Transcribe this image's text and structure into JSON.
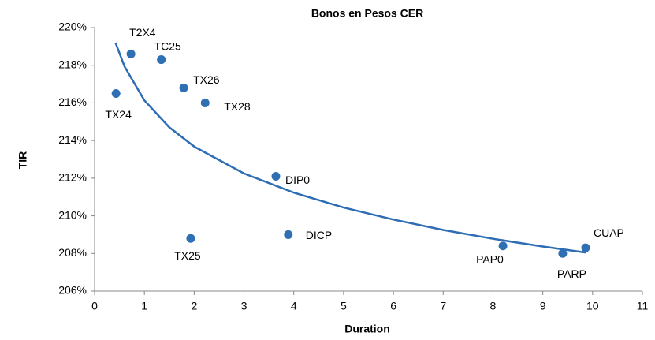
{
  "chart_data": {
    "type": "scatter",
    "title": "Bonos en Pesos CER",
    "x_label": "Duration",
    "y_label": "TIR",
    "xlim": [
      0,
      11
    ],
    "xticks": [
      0,
      1,
      2,
      3,
      4,
      5,
      6,
      7,
      8,
      9,
      10,
      11
    ],
    "ylim": [
      206,
      220
    ],
    "yticks": [
      {
        "value": 206,
        "label": "206%"
      },
      {
        "value": 208,
        "label": "208%"
      },
      {
        "value": 210,
        "label": "210%"
      },
      {
        "value": 212,
        "label": "212%"
      },
      {
        "value": 214,
        "label": "214%"
      },
      {
        "value": 216,
        "label": "216%"
      },
      {
        "value": 218,
        "label": "218%"
      },
      {
        "value": 220,
        "label": "220%"
      }
    ],
    "grid": false,
    "series": [
      {
        "color": "#2f6fb3",
        "labels": [
          "TX24",
          "T2X4",
          "TC25",
          "TX26",
          "TX28",
          "TX25",
          "DIP0",
          "DICP",
          "PAP0",
          "PARP",
          "CUAP"
        ],
        "x": [
          0.43,
          0.73,
          1.34,
          1.79,
          2.22,
          1.93,
          3.64,
          3.89,
          8.2,
          9.4,
          9.86
        ],
        "values": [
          216.5,
          218.6,
          218.3,
          216.8,
          216.0,
          208.8,
          212.1,
          209.0,
          208.4,
          208.0,
          208.3
        ]
      },
      {
        "type": "line",
        "color": "#2e6db4",
        "x": [
          0.42,
          0.6,
          1,
          1.5,
          2,
          3,
          4,
          5,
          6,
          7,
          8,
          9,
          9.86
        ],
        "values": [
          219.2,
          217.94,
          216.13,
          214.7,
          213.68,
          212.25,
          211.23,
          210.44,
          209.8,
          209.25,
          208.78,
          208.37,
          208.05
        ]
      }
    ]
  }
}
